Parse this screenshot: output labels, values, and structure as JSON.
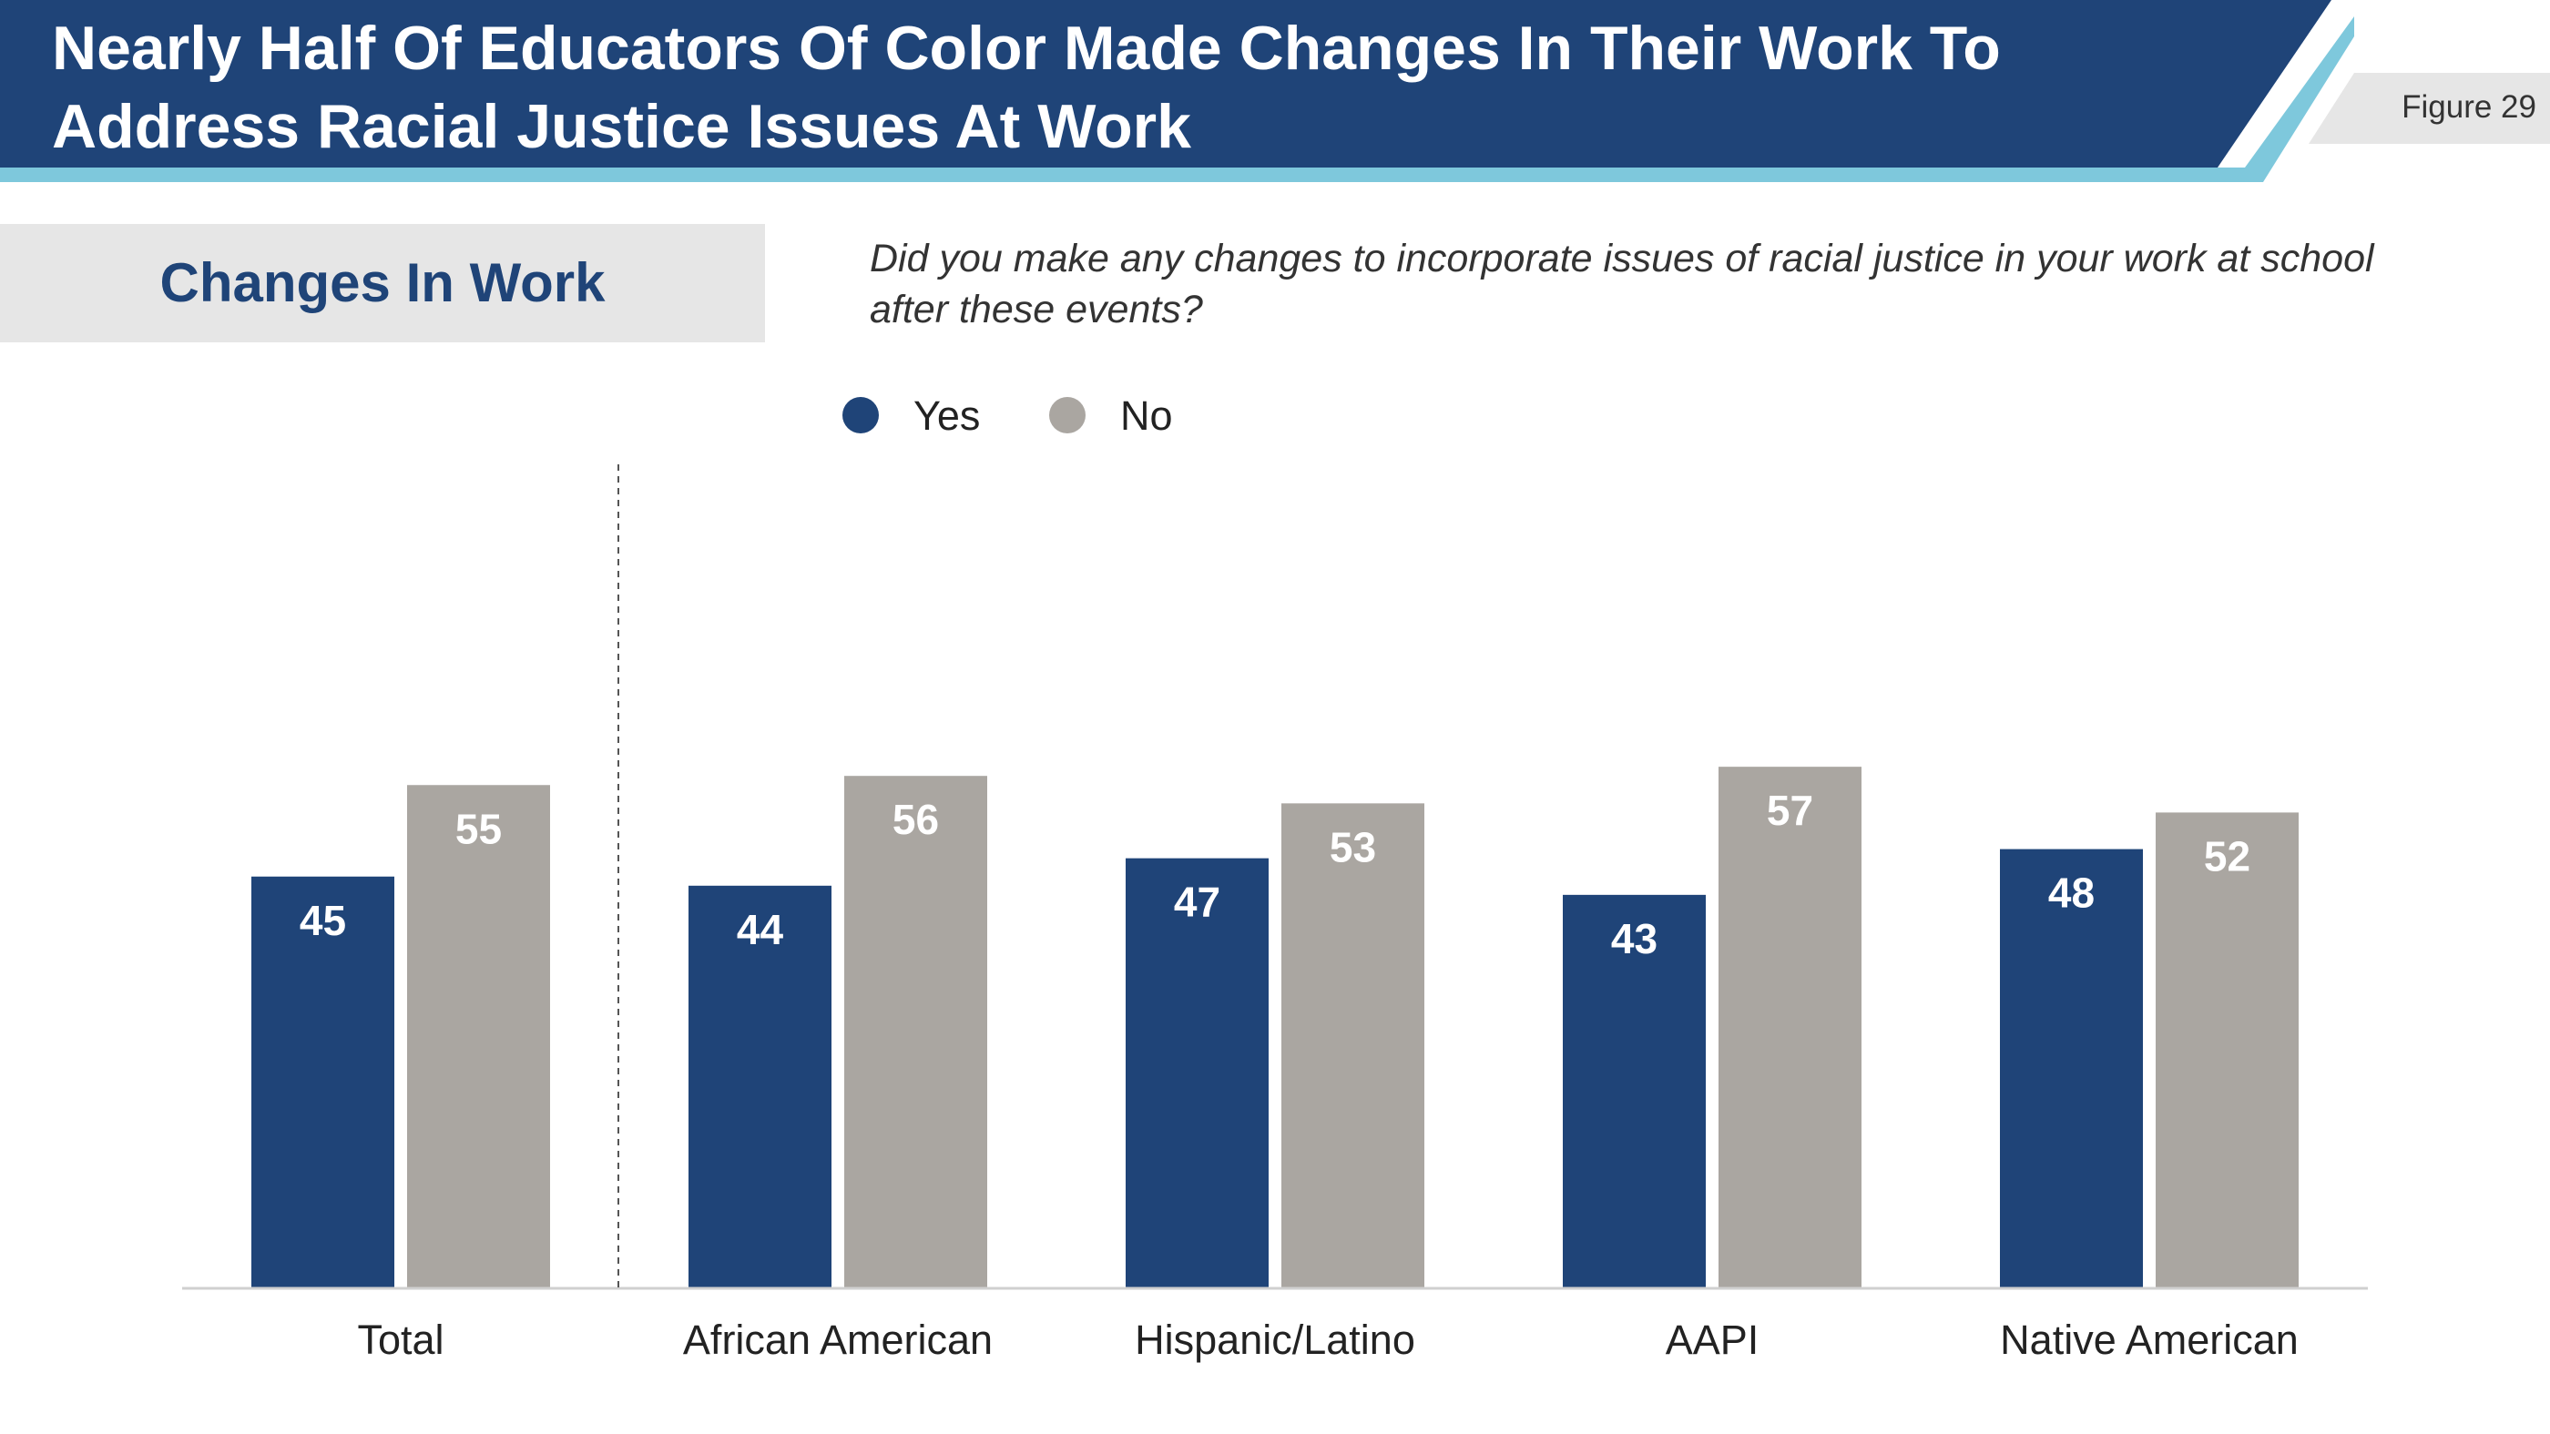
{
  "header": {
    "title": "Nearly Half Of Educators Of Color Made Changes In Their Work To Address Racial Justice Issues At Work",
    "figure_label": "Figure 29"
  },
  "section": {
    "title": "Changes In Work",
    "question": "Did you make any changes to incorporate issues of racial justice in your work  at school after these events?"
  },
  "colors": {
    "header_bg": "#1f4478",
    "header_accent": "#7ec8dc",
    "yes": "#1f4478",
    "no": "#aaa6a1",
    "tab_bg": "#e6e6e6"
  },
  "chart_data": {
    "type": "bar",
    "categories": [
      "Total",
      "African American",
      "Hispanic/Latino",
      "AAPI",
      "Native American"
    ],
    "series": [
      {
        "name": "Yes",
        "values": [
          45,
          44,
          47,
          43,
          48
        ]
      },
      {
        "name": "No",
        "values": [
          55,
          56,
          53,
          57,
          52
        ]
      }
    ],
    "ylim": [
      0,
      100
    ],
    "grid": false,
    "legend_position": "top-center",
    "data_labels": true,
    "separator_after_category": "Total"
  }
}
